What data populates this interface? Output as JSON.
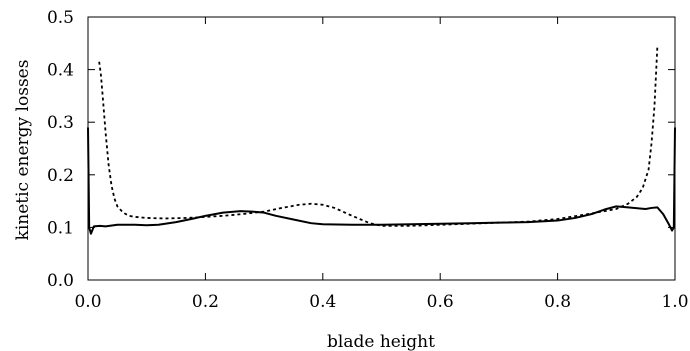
{
  "chart_data": {
    "type": "line",
    "title": "",
    "xlabel": "blade height",
    "ylabel": "kinetic energy losses",
    "xlim": [
      0.0,
      1.0
    ],
    "ylim": [
      0.0,
      0.5
    ],
    "xticks": [
      0.0,
      0.2,
      0.4,
      0.6,
      0.8,
      1.0
    ],
    "xtick_labels": [
      "0.0",
      "0.2",
      "0.4",
      "0.6",
      "0.8",
      "1.0"
    ],
    "yticks": [
      0.0,
      0.1,
      0.2,
      0.3,
      0.4,
      0.5
    ],
    "ytick_labels": [
      "0.0",
      "0.1",
      "0.2",
      "0.3",
      "0.4",
      "0.5"
    ],
    "grid": false,
    "legend": "none",
    "series": [
      {
        "style": "solid",
        "color": "#000000",
        "x": [
          0.0,
          0.002,
          0.005,
          0.01,
          0.02,
          0.03,
          0.05,
          0.08,
          0.1,
          0.12,
          0.15,
          0.18,
          0.2,
          0.23,
          0.26,
          0.28,
          0.3,
          0.32,
          0.35,
          0.38,
          0.4,
          0.45,
          0.5,
          0.55,
          0.6,
          0.65,
          0.7,
          0.75,
          0.8,
          0.83,
          0.86,
          0.88,
          0.9,
          0.92,
          0.94,
          0.95,
          0.96,
          0.97,
          0.98,
          0.99,
          0.995,
          0.998,
          1.0
        ],
        "y": [
          0.29,
          0.1,
          0.088,
          0.102,
          0.103,
          0.102,
          0.105,
          0.105,
          0.104,
          0.105,
          0.11,
          0.117,
          0.122,
          0.128,
          0.131,
          0.13,
          0.128,
          0.122,
          0.115,
          0.108,
          0.106,
          0.105,
          0.105,
          0.106,
          0.107,
          0.108,
          0.109,
          0.11,
          0.113,
          0.118,
          0.126,
          0.134,
          0.14,
          0.138,
          0.136,
          0.135,
          0.137,
          0.138,
          0.125,
          0.105,
          0.094,
          0.1,
          0.29
        ]
      },
      {
        "style": "dashed",
        "color": "#000000",
        "x": [
          0.019,
          0.022,
          0.025,
          0.03,
          0.035,
          0.04,
          0.045,
          0.05,
          0.06,
          0.07,
          0.08,
          0.1,
          0.13,
          0.17,
          0.2,
          0.23,
          0.26,
          0.3,
          0.33,
          0.36,
          0.38,
          0.4,
          0.42,
          0.45,
          0.48,
          0.5,
          0.55,
          0.6,
          0.65,
          0.7,
          0.75,
          0.8,
          0.85,
          0.9,
          0.92,
          0.935,
          0.945,
          0.955,
          0.96,
          0.965,
          0.97
        ],
        "y": [
          0.415,
          0.39,
          0.35,
          0.28,
          0.22,
          0.18,
          0.155,
          0.14,
          0.128,
          0.122,
          0.12,
          0.118,
          0.117,
          0.118,
          0.12,
          0.122,
          0.125,
          0.13,
          0.137,
          0.143,
          0.145,
          0.143,
          0.137,
          0.122,
          0.108,
          0.103,
          0.103,
          0.105,
          0.107,
          0.109,
          0.111,
          0.116,
          0.125,
          0.135,
          0.145,
          0.158,
          0.175,
          0.21,
          0.26,
          0.33,
          0.445
        ]
      }
    ]
  }
}
